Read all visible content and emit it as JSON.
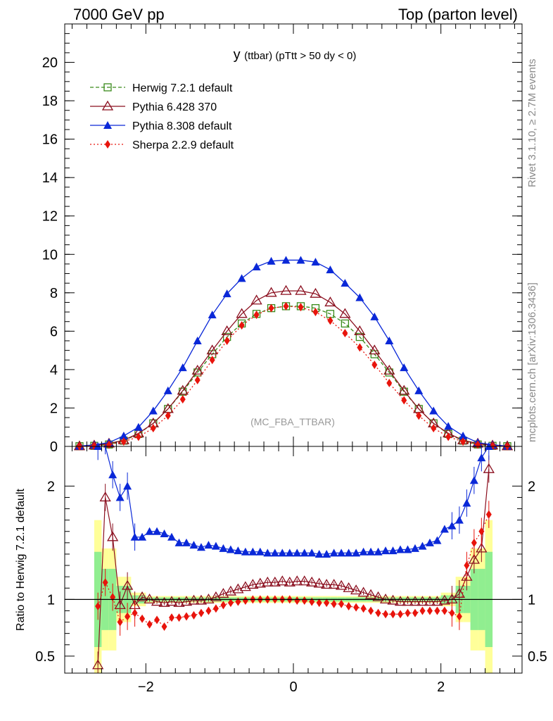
{
  "header": {
    "left": "7000 GeV pp",
    "right": "Top (parton level)"
  },
  "side_labels": {
    "rivet": "Rivet 3.1.10, ≥ 2.7M events",
    "source": "mcplots.cern.ch [arXiv:1306.3436]"
  },
  "colors": {
    "herwig": "#3a8a1a",
    "pythia6": "#8b0f1f",
    "pythia8": "#0a28d8",
    "sherpa": "#e8140c",
    "band_yellow": "#ffff99",
    "band_green": "#90ee90"
  },
  "chart_data": [
    {
      "type": "line",
      "title_main": "y",
      "title_sub": "(ttbar) (pTtt > 50 dy < 0)",
      "watermark": "(MC_FBA_TTBAR)",
      "xlim": [
        -3.1,
        3.1
      ],
      "ylim": [
        0,
        22
      ],
      "y_ticks": [
        0,
        2,
        4,
        6,
        8,
        10,
        12,
        14,
        16,
        18,
        20
      ],
      "legend_position": "top-left",
      "x": [
        -2.9,
        -2.7,
        -2.5,
        -2.3,
        -2.1,
        -1.9,
        -1.7,
        -1.5,
        -1.3,
        -1.1,
        -0.9,
        -0.7,
        -0.5,
        -0.3,
        -0.1,
        0.1,
        0.3,
        0.5,
        0.7,
        0.9,
        1.1,
        1.3,
        1.5,
        1.7,
        1.9,
        2.1,
        2.3,
        2.5,
        2.7,
        2.9
      ],
      "series": [
        {
          "name": "Herwig 7.2.1 default",
          "key": "herwig",
          "marker": "open-square",
          "line": "dashed",
          "values": [
            0.01,
            0.03,
            0.1,
            0.3,
            0.65,
            1.2,
            1.95,
            2.85,
            3.85,
            4.8,
            5.7,
            6.4,
            6.9,
            7.2,
            7.3,
            7.3,
            7.2,
            6.9,
            6.4,
            5.7,
            4.8,
            3.85,
            2.85,
            1.95,
            1.2,
            0.65,
            0.3,
            0.1,
            0.03,
            0.01
          ]
        },
        {
          "name": "Pythia 6.428 370",
          "key": "pythia6",
          "marker": "open-triangle",
          "line": "solid",
          "values": [
            0.01,
            0.05,
            0.15,
            0.32,
            0.68,
            1.2,
            1.95,
            2.9,
            3.95,
            5.0,
            6.0,
            6.9,
            7.6,
            8.0,
            8.1,
            8.1,
            7.95,
            7.5,
            6.9,
            6.0,
            5.0,
            3.95,
            2.9,
            1.95,
            1.2,
            0.68,
            0.32,
            0.15,
            0.05,
            0.01
          ]
        },
        {
          "name": "Pythia 8.308 default",
          "key": "pythia8",
          "marker": "filled-triangle",
          "line": "solid",
          "values": [
            0.02,
            0.08,
            0.2,
            0.55,
            1.0,
            1.85,
            2.9,
            4.1,
            5.5,
            6.85,
            7.95,
            8.75,
            9.35,
            9.65,
            9.7,
            9.7,
            9.6,
            9.2,
            8.5,
            7.75,
            6.75,
            5.5,
            4.1,
            2.9,
            1.85,
            1.05,
            0.55,
            0.2,
            0.08,
            0.02
          ]
        },
        {
          "name": "Sherpa 2.2.9 default",
          "key": "sherpa",
          "marker": "filled-diamond",
          "line": "dotted",
          "values": [
            0.01,
            0.03,
            0.09,
            0.25,
            0.5,
            0.95,
            1.6,
            2.45,
            3.45,
            4.5,
            5.5,
            6.3,
            6.85,
            7.2,
            7.3,
            7.25,
            7.0,
            6.55,
            5.9,
            5.15,
            4.25,
            3.3,
            2.4,
            1.6,
            0.95,
            0.5,
            0.25,
            0.09,
            0.03,
            0.01
          ]
        }
      ]
    },
    {
      "type": "line",
      "ylabel": "Ratio to Herwig 7.2.1 default",
      "xlim": [
        -3.1,
        3.1
      ],
      "ylim": [
        0.35,
        2.35
      ],
      "y_ticks": [
        0.5,
        1,
        2
      ],
      "x_ticks": [
        -2,
        0,
        2
      ],
      "reference_line": 1,
      "x": [
        -2.65,
        -2.55,
        -2.45,
        -2.35,
        -2.25,
        -2.15,
        -2.05,
        -1.95,
        -1.85,
        -1.75,
        -1.65,
        -1.55,
        -1.45,
        -1.35,
        -1.25,
        -1.15,
        -1.05,
        -0.95,
        -0.85,
        -0.75,
        -0.65,
        -0.55,
        -0.45,
        -0.35,
        -0.25,
        -0.15,
        -0.05,
        0.05,
        0.15,
        0.25,
        0.35,
        0.45,
        0.55,
        0.65,
        0.75,
        0.85,
        0.95,
        1.05,
        1.15,
        1.25,
        1.35,
        1.45,
        1.55,
        1.65,
        1.75,
        1.85,
        1.95,
        2.05,
        2.15,
        2.25,
        2.35,
        2.45,
        2.55,
        2.65
      ],
      "series": [
        {
          "name": "Pythia 6.428 370",
          "key": "pythia6",
          "values": [
            0.42,
            1.9,
            1.55,
            0.95,
            1.12,
            0.95,
            1.02,
            1.0,
            0.98,
            0.97,
            0.98,
            0.97,
            0.98,
            0.99,
            0.99,
            1.0,
            1.02,
            1.05,
            1.07,
            1.09,
            1.11,
            1.13,
            1.14,
            1.15,
            1.15,
            1.16,
            1.15,
            1.16,
            1.16,
            1.15,
            1.14,
            1.13,
            1.13,
            1.12,
            1.1,
            1.08,
            1.06,
            1.04,
            1.02,
            1.0,
            0.99,
            0.98,
            0.98,
            0.98,
            0.98,
            0.98,
            0.98,
            0.99,
            1.0,
            1.05,
            1.2,
            1.35,
            1.45,
            2.15
          ]
        },
        {
          "name": "Pythia 8.308 default",
          "key": "pythia8",
          "values": [
            2.35,
            2.4,
            2.1,
            1.9,
            2.0,
            1.55,
            1.55,
            1.6,
            1.6,
            1.58,
            1.55,
            1.5,
            1.5,
            1.48,
            1.46,
            1.48,
            1.47,
            1.45,
            1.44,
            1.43,
            1.42,
            1.42,
            1.42,
            1.41,
            1.41,
            1.41,
            1.41,
            1.41,
            1.41,
            1.41,
            1.4,
            1.4,
            1.41,
            1.41,
            1.41,
            1.41,
            1.42,
            1.42,
            1.42,
            1.43,
            1.43,
            1.44,
            1.44,
            1.45,
            1.47,
            1.5,
            1.52,
            1.62,
            1.65,
            1.7,
            1.85,
            2.05,
            2.25,
            2.35
          ]
        },
        {
          "name": "Sherpa 2.2.9 default",
          "key": "sherpa",
          "values": [
            0.94,
            1.15,
            1.02,
            0.8,
            0.85,
            0.88,
            0.83,
            0.78,
            0.82,
            0.76,
            0.84,
            0.84,
            0.85,
            0.86,
            0.88,
            0.9,
            0.92,
            0.95,
            0.97,
            0.98,
            0.99,
            1.0,
            1.0,
            1.0,
            1.0,
            1.0,
            1.0,
            0.99,
            0.99,
            0.98,
            0.97,
            0.97,
            0.96,
            0.96,
            0.94,
            0.93,
            0.92,
            0.9,
            0.88,
            0.87,
            0.87,
            0.87,
            0.88,
            0.88,
            0.9,
            0.9,
            0.9,
            0.9,
            0.88,
            0.85,
            1.3,
            1.5,
            1.6,
            1.75
          ]
        }
      ]
    }
  ]
}
